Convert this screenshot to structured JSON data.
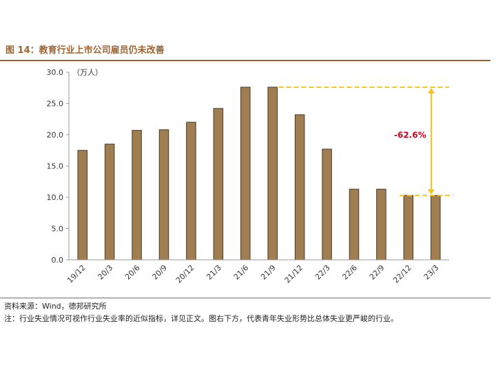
{
  "figure": {
    "title": "图 14：教育行业上市公司雇员仍未改善",
    "source": "资料来源：Wind，德邦研究所",
    "note": "注：行业失业情况可视作行业失业率的近似指标，详见正文。图右下方，代表青年失业形势比总体失业更严峻的行业。"
  },
  "chart_data": {
    "type": "bar",
    "unit_label": "（万人）",
    "categories": [
      "19/12",
      "20/3",
      "20/6",
      "20/9",
      "20/12",
      "21/3",
      "21/6",
      "21/9",
      "21/12",
      "22/3",
      "22/6",
      "22/9",
      "22/12",
      "23/3"
    ],
    "values": [
      17.5,
      18.5,
      20.7,
      20.8,
      22.0,
      24.2,
      27.6,
      27.6,
      23.2,
      17.7,
      11.3,
      11.3,
      10.3,
      10.3
    ],
    "yticks": [
      "0.0",
      "5.0",
      "10.0",
      "15.0",
      "20.0",
      "25.0",
      "30.0"
    ],
    "ylim": [
      0,
      30
    ],
    "bar_color": "#a07e52",
    "annotation": {
      "label": "-62.6%",
      "from_value": 27.6,
      "to_value": 10.3,
      "line_color": "#f5c518",
      "text_color": "#d0021b"
    }
  }
}
